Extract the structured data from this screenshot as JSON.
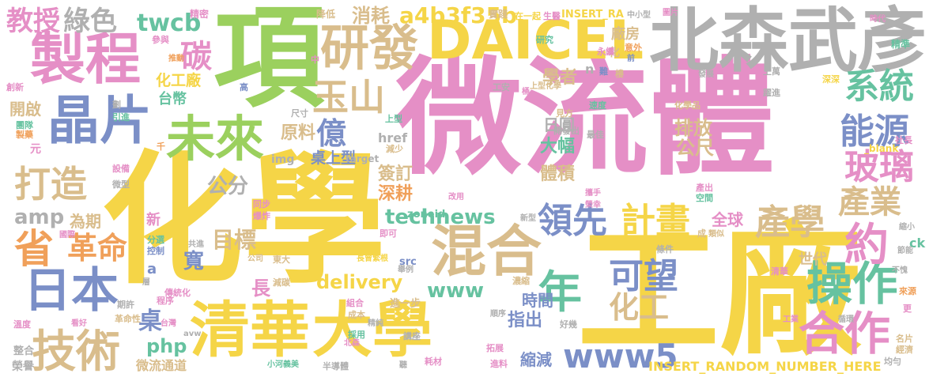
{
  "palette": {
    "yellow": "#f5d547",
    "pink": "#e58fc6",
    "green": "#9bd05e",
    "tan": "#d9bd8c",
    "blue": "#7b8fc7",
    "teal": "#66c2a0",
    "gray": "#b0b0b0",
    "orange": "#f0a05a"
  },
  "words": [
    {
      "text": "微流體",
      "color": "pink"
    },
    {
      "text": "化學",
      "color": "yellow"
    },
    {
      "text": "工廠",
      "color": "yellow"
    },
    {
      "text": "項",
      "color": "green"
    },
    {
      "text": "北森武彥",
      "color": "gray"
    },
    {
      "text": "DAICEL",
      "color": "yellow"
    },
    {
      "text": "製程",
      "color": "pink"
    },
    {
      "text": "晶片",
      "color": "blue"
    },
    {
      "text": "清華",
      "color": "yellow"
    },
    {
      "text": "大學",
      "color": "yellow"
    },
    {
      "text": "混合",
      "color": "tan"
    },
    {
      "text": "研發",
      "color": "tan"
    },
    {
      "text": "未來",
      "color": "green"
    },
    {
      "text": "日本",
      "color": "blue"
    },
    {
      "text": "技術",
      "color": "tan"
    },
    {
      "text": "操作",
      "color": "teal"
    },
    {
      "text": "合作",
      "color": "pink"
    },
    {
      "text": "年",
      "color": "teal"
    },
    {
      "text": "省",
      "color": "orange"
    },
    {
      "text": "打造",
      "color": "tan"
    },
    {
      "text": "玉山",
      "color": "tan"
    },
    {
      "text": "計畫",
      "color": "yellow"
    },
    {
      "text": "產學",
      "color": "tan"
    },
    {
      "text": "領先",
      "color": "blue"
    },
    {
      "text": "約",
      "color": "pink"
    },
    {
      "text": "億",
      "color": "blue"
    },
    {
      "text": "碳",
      "color": "pink"
    },
    {
      "text": "綠色",
      "color": "gray"
    },
    {
      "text": "教授",
      "color": "pink"
    },
    {
      "text": "twcb",
      "color": "teal"
    },
    {
      "text": "a4b3f35b",
      "color": "yellow"
    },
    {
      "text": "消耗",
      "color": "tan"
    },
    {
      "text": "系統",
      "color": "teal"
    },
    {
      "text": "能源",
      "color": "blue"
    },
    {
      "text": "玻璃",
      "color": "pink"
    },
    {
      "text": "產業",
      "color": "tan"
    },
    {
      "text": "可望",
      "color": "blue"
    },
    {
      "text": "化工",
      "color": "tan"
    },
    {
      "text": "革命",
      "color": "orange"
    },
    {
      "text": "目標",
      "color": "tan"
    },
    {
      "text": "technews",
      "color": "teal"
    },
    {
      "text": "delivery",
      "color": "yellow"
    },
    {
      "text": "www",
      "color": "teal"
    },
    {
      "text": "www5",
      "color": "blue"
    },
    {
      "text": "php",
      "color": "teal"
    },
    {
      "text": "amp",
      "color": "gray"
    },
    {
      "text": "原料",
      "color": "tan"
    },
    {
      "text": "公分",
      "color": "gray"
    },
    {
      "text": "桌上型",
      "color": "blue"
    },
    {
      "text": "化工廠",
      "color": "yellow"
    },
    {
      "text": "台幣",
      "color": "teal"
    },
    {
      "text": "學者",
      "color": "tan"
    },
    {
      "text": "日圓",
      "color": "gray"
    },
    {
      "text": "排放",
      "color": "tan"
    },
    {
      "text": "大幅",
      "color": "teal"
    },
    {
      "text": "體積",
      "color": "tan"
    },
    {
      "text": "簽訂",
      "color": "tan"
    },
    {
      "text": "深耕",
      "color": "orange"
    },
    {
      "text": "公尺",
      "color": "tan"
    },
    {
      "text": "全球",
      "color": "pink"
    },
    {
      "text": "世代",
      "color": "tan"
    },
    {
      "text": "時間",
      "color": "blue"
    },
    {
      "text": "指出",
      "color": "blue"
    },
    {
      "text": "縮減",
      "color": "blue"
    },
    {
      "text": "寬",
      "color": "blue"
    },
    {
      "text": "桌",
      "color": "blue"
    },
    {
      "text": "開啟",
      "color": "tan"
    },
    {
      "text": "INSERT_RANDOM_NUMBER_HERE",
      "color": "yellow"
    },
    {
      "text": "微流通道",
      "color": "tan"
    },
    {
      "text": "榮譽",
      "color": "gray"
    },
    {
      "text": "整合",
      "color": "gray"
    },
    {
      "text": "為期",
      "color": "tan"
    },
    {
      "text": "新",
      "color": "pink"
    },
    {
      "text": "長",
      "color": "pink"
    },
    {
      "text": "元",
      "color": "pink"
    },
    {
      "text": "href",
      "color": "gray"
    },
    {
      "text": "a",
      "color": "blue"
    },
    {
      "text": "img",
      "color": "gray"
    },
    {
      "text": "target",
      "color": "gray"
    },
    {
      "text": "src",
      "color": "blue"
    },
    {
      "text": "zoneid",
      "color": "teal"
    },
    {
      "text": "ck",
      "color": "teal"
    },
    {
      "text": "_blank",
      "color": "yellow"
    },
    {
      "text": "INSERT_RA",
      "color": "yellow"
    },
    {
      "text": "廠房",
      "color": "tan"
    },
    {
      "text": "化",
      "color": "tan"
    },
    {
      "text": "n",
      "color": "gray"
    },
    {
      "text": "精密",
      "color": "pink"
    },
    {
      "text": "降低",
      "color": "tan"
    },
    {
      "text": "實踐",
      "color": "tan"
    },
    {
      "text": "在一起",
      "color": "yellow"
    },
    {
      "text": "生醫",
      "color": "pink"
    },
    {
      "text": "中小型",
      "color": "gray"
    },
    {
      "text": "圖片",
      "color": "pink"
    },
    {
      "text": "參與",
      "color": "pink"
    },
    {
      "text": "推動",
      "color": "orange"
    },
    {
      "text": "研究",
      "color": "teal"
    },
    {
      "text": "永續",
      "color": "pink"
    },
    {
      "text": "意外",
      "color": "orange"
    },
    {
      "text": "時代",
      "color": "pink"
    },
    {
      "text": "精準",
      "color": "teal"
    },
    {
      "text": "深深",
      "color": "yellow"
    },
    {
      "text": "發展",
      "color": "gray"
    },
    {
      "text": "上萬",
      "color": "gray"
    },
    {
      "text": "難",
      "color": "blue"
    },
    {
      "text": "樓",
      "color": "tan"
    },
    {
      "text": "前",
      "color": "blue"
    },
    {
      "text": "高",
      "color": "blue"
    },
    {
      "text": "中",
      "color": "pink"
    },
    {
      "text": "工安",
      "color": "gray"
    },
    {
      "text": "上型化學",
      "color": "tan"
    },
    {
      "text": "桶",
      "color": "pink"
    },
    {
      "text": "尺寸",
      "color": "gray"
    },
    {
      "text": "引進",
      "color": "teal"
    },
    {
      "text": "團隊",
      "color": "teal"
    },
    {
      "text": "製藥",
      "color": "orange"
    },
    {
      "text": "千",
      "color": "orange"
    },
    {
      "text": "設備",
      "color": "pink"
    },
    {
      "text": "微型",
      "color": "gray"
    },
    {
      "text": "創新",
      "color": "pink"
    },
    {
      "text": "劃",
      "color": "gray"
    },
    {
      "text": "減少",
      "color": "tan"
    },
    {
      "text": "見方",
      "color": "tan"
    },
    {
      "text": "速度",
      "color": "teal"
    },
    {
      "text": "開發出",
      "color": "gray"
    },
    {
      "text": "最佳",
      "color": "gray"
    },
    {
      "text": "化學品",
      "color": "tan"
    },
    {
      "text": "躍進",
      "color": "gray"
    },
    {
      "text": "社長",
      "color": "pink"
    },
    {
      "text": "上型",
      "color": "teal"
    },
    {
      "text": "產出",
      "color": "pink"
    },
    {
      "text": "空間",
      "color": "teal"
    },
    {
      "text": "同步",
      "color": "pink"
    },
    {
      "text": "爆炸",
      "color": "pink"
    },
    {
      "text": "國際",
      "color": "pink"
    },
    {
      "text": "分選",
      "color": "teal"
    },
    {
      "text": "控制",
      "color": "blue"
    },
    {
      "text": "共進",
      "color": "gray"
    },
    {
      "text": "即可",
      "color": "pink"
    },
    {
      "text": "公司",
      "color": "tan"
    },
    {
      "text": "東大",
      "color": "tan"
    },
    {
      "text": "改用",
      "color": "pink"
    },
    {
      "text": "新型",
      "color": "gray"
    },
    {
      "text": "攜手",
      "color": "pink"
    },
    {
      "text": "榮幸",
      "color": "pink"
    },
    {
      "text": "成",
      "color": "tan"
    },
    {
      "text": "類似",
      "color": "tan"
    },
    {
      "text": "條件",
      "color": "gray"
    },
    {
      "text": "長曾繁根",
      "color": "yellow"
    },
    {
      "text": "舉例",
      "color": "gray"
    },
    {
      "text": "減碳",
      "color": "tan"
    },
    {
      "text": "濃縮",
      "color": "tan"
    },
    {
      "text": "清華",
      "color": "pink"
    },
    {
      "text": "不愧",
      "color": "gray"
    },
    {
      "text": "節能",
      "color": "gray"
    },
    {
      "text": "縮小",
      "color": "gray"
    },
    {
      "text": "來源",
      "color": "orange"
    },
    {
      "text": "更",
      "color": "pink"
    },
    {
      "text": "循環",
      "color": "gray"
    },
    {
      "text": "工業",
      "color": "pink"
    },
    {
      "text": "名片",
      "color": "tan"
    },
    {
      "text": "經濟",
      "color": "tan"
    },
    {
      "text": "均勻",
      "color": "gray"
    },
    {
      "text": "層",
      "color": "gray"
    },
    {
      "text": "程序",
      "color": "pink"
    },
    {
      "text": "傳統化",
      "color": "pink"
    },
    {
      "text": "期許",
      "color": "gray"
    },
    {
      "text": "溫度",
      "color": "pink"
    },
    {
      "text": "看好",
      "color": "pink"
    },
    {
      "text": "革命性",
      "color": "tan"
    },
    {
      "text": "台灣",
      "color": "pink"
    },
    {
      "text": "avw",
      "color": "gray"
    },
    {
      "text": "組合",
      "color": "pink"
    },
    {
      "text": "成本",
      "color": "tan"
    },
    {
      "text": "精純",
      "color": "gray"
    },
    {
      "text": "進一步",
      "color": "tan"
    },
    {
      "text": "採用",
      "color": "teal"
    },
    {
      "text": "北森",
      "color": "pink"
    },
    {
      "text": "講座",
      "color": "gray"
    },
    {
      "text": "順序",
      "color": "gray"
    },
    {
      "text": "好幾",
      "color": "gray"
    },
    {
      "text": "拓展",
      "color": "pink"
    },
    {
      "text": "半導體",
      "color": "gray"
    },
    {
      "text": "小河義美",
      "color": "teal"
    },
    {
      "text": "聽",
      "color": "gray"
    },
    {
      "text": "耗材",
      "color": "pink"
    },
    {
      "text": "進料",
      "color": "pink"
    }
  ]
}
